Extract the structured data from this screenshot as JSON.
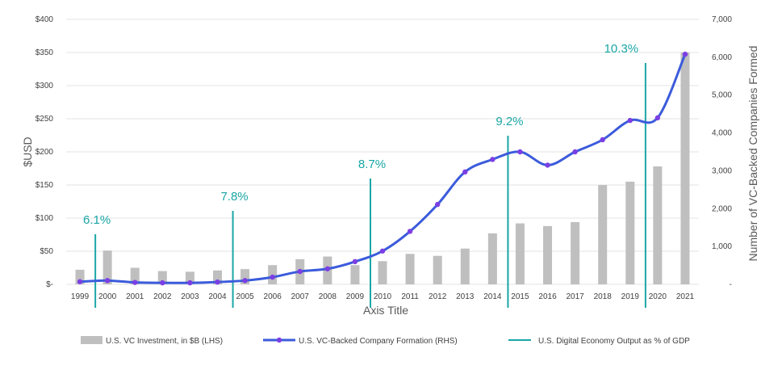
{
  "chart_data": {
    "type": "bar",
    "categories": [
      "1999",
      "2000",
      "2001",
      "2002",
      "2003",
      "2004",
      "2005",
      "2006",
      "2007",
      "2008",
      "2009",
      "2010",
      "2011",
      "2012",
      "2013",
      "2014",
      "2015",
      "2016",
      "2017",
      "2018",
      "2019",
      "2020",
      "2021"
    ],
    "series": [
      {
        "name": "U.S. VC Investment, in $B (LHS)",
        "type": "bar",
        "axis": "left",
        "color": "#bfbfbf",
        "values": [
          22,
          51,
          25,
          20,
          19,
          21,
          23,
          29,
          38,
          42,
          29,
          35,
          46,
          43,
          54,
          77,
          92,
          88,
          94,
          150,
          155,
          178,
          350
        ]
      },
      {
        "name": "U.S. VC-Backed Company Formation (RHS)",
        "type": "line",
        "axis": "right",
        "color": "#3b5bdb",
        "marker_color": "#7b3fe4",
        "values": [
          70,
          100,
          50,
          40,
          40,
          60,
          100,
          190,
          340,
          410,
          600,
          880,
          1400,
          2110,
          2970,
          3300,
          3500,
          3150,
          3500,
          3820,
          4330,
          4400,
          6080
        ]
      },
      {
        "name": "U.S. Digital Economy Output as % of GDP",
        "type": "annotation-lines",
        "color": "#1aa6a6",
        "points": [
          {
            "category": "2000",
            "label": "6.1%"
          },
          {
            "category": "2005",
            "label": "7.8%"
          },
          {
            "category": "2010",
            "label": "8.7%"
          },
          {
            "category": "2015",
            "label": "9.2%"
          },
          {
            "category": "2020",
            "label": "10.3%"
          }
        ]
      }
    ],
    "left_axis": {
      "label": "$USD",
      "ylim": [
        0,
        400
      ],
      "ticks": [
        0,
        50,
        100,
        150,
        200,
        250,
        300,
        350,
        400
      ],
      "tick_labels": [
        "$-",
        "$50",
        "$100",
        "$150",
        "$200",
        "$250",
        "$300",
        "$350",
        "$400"
      ]
    },
    "right_axis": {
      "label": "Number of VC-Backed Companies Formed",
      "ylim": [
        0,
        7000
      ],
      "ticks": [
        0,
        1000,
        2000,
        3000,
        4000,
        5000,
        6000,
        7000
      ],
      "tick_labels": [
        "-",
        "1,000",
        "2,000",
        "3,000",
        "4,000",
        "5,000",
        "6,000",
        "7,000"
      ]
    },
    "xlabel": "Axis Title",
    "grid": true,
    "legend_position": "bottom"
  }
}
